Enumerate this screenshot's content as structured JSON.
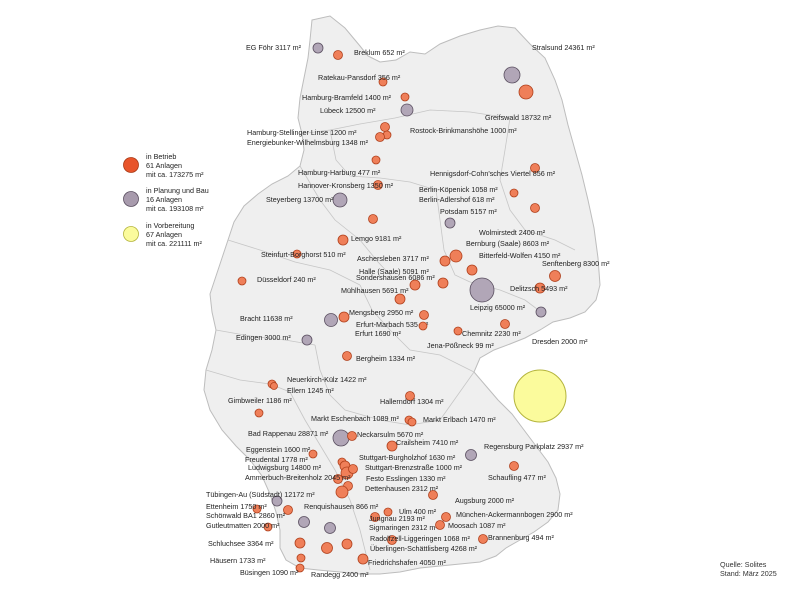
{
  "legend": [
    {
      "status": "in_betrieb",
      "line1": "in Betrieb",
      "line2": "61 Anlagen",
      "line3": "mit ca. 173275 m²",
      "color": "#e8542a"
    },
    {
      "status": "planung",
      "line1": "in Planung und Bau",
      "line2": "16 Anlagen",
      "line3": "mit ca. 193108 m²",
      "color": "#a89bad"
    },
    {
      "status": "vorbereitung",
      "line1": "in Vorbereitung",
      "line2": "67 Anlagen",
      "line3": "mit ca. 221111 m²",
      "color": "#fbfb9c"
    }
  ],
  "source": {
    "line1": "Quelle: Solites",
    "line2": "Stand: März 2025"
  },
  "colors": {
    "betrieb": "#ef7f59",
    "betrieb_stroke": "#b0401c",
    "planung": "#b1a6b7",
    "planung_stroke": "#5a4f60",
    "vorbereitung": "#fbfb9c",
    "vorbereitung_stroke": "#b4b43c",
    "land": "#efefef",
    "border": "#c6c6c6"
  },
  "sites": [
    {
      "name": "EG Föhr 3117 m²",
      "type": "planung"
    },
    {
      "name": "Breklum 652 m²",
      "type": "betrieb"
    },
    {
      "name": "Ratekau-Pansdorf 356 m²",
      "type": "betrieb"
    },
    {
      "name": "Stralsund 24361 m²",
      "type": "planung"
    },
    {
      "name": "Hamburg-Bramfeld 1400 m²",
      "type": "betrieb"
    },
    {
      "name": "Lübeck 12500 m²",
      "type": "planung"
    },
    {
      "name": "Greifswald 18732 m²",
      "type": "betrieb"
    },
    {
      "name": "Hamburg-Stellinger Linse 1200 m²",
      "type": "betrieb"
    },
    {
      "name": "Rostock-Brinkmanshöhe 1000 m²",
      "type": "betrieb"
    },
    {
      "name": "Energiebunker-Wilhelmsburg 1348 m²",
      "type": "betrieb"
    },
    {
      "name": "Hamburg-Harburg 477 m²",
      "type": "betrieb"
    },
    {
      "name": "Hennigsdorf-Cohn'sches Viertel 856 m²",
      "type": "betrieb"
    },
    {
      "name": "Hannover-Kronsberg 1350 m²",
      "type": "betrieb"
    },
    {
      "name": "Berlin-Köpenick 1058 m²",
      "type": "betrieb"
    },
    {
      "name": "Steyerberg 13700 m²",
      "type": "planung"
    },
    {
      "name": "Berlin-Adlershof 618 m²",
      "type": "betrieb"
    },
    {
      "name": "Potsdam 5157 m²",
      "type": "planung"
    },
    {
      "name": "Wolmirstedt 2400 m²",
      "type": "betrieb"
    },
    {
      "name": "Lemgo 9181 m²",
      "type": "betrieb"
    },
    {
      "name": "Bernburg (Saale) 8603 m²",
      "type": "betrieb"
    },
    {
      "name": "Steinfurt-Borghorst 510 m²",
      "type": "betrieb"
    },
    {
      "name": "Aschersleben 3717 m²",
      "type": "betrieb"
    },
    {
      "name": "Bitterfeld-Wolfen 4150 m²",
      "type": "betrieb"
    },
    {
      "name": "Halle (Saale) 5091 m²",
      "type": "betrieb"
    },
    {
      "name": "Senftenberg 8300 m²",
      "type": "betrieb"
    },
    {
      "name": "Sondershausen 6086 m²",
      "type": "betrieb"
    },
    {
      "name": "Düsseldorf 240 m²",
      "type": "betrieb"
    },
    {
      "name": "Mühlhausen 5691 m²",
      "type": "betrieb"
    },
    {
      "name": "Delitzsch 5493 m²",
      "type": "betrieb"
    },
    {
      "name": "Leipzig 65000 m²",
      "type": "planung"
    },
    {
      "name": "Mengsberg 2950 m²",
      "type": "betrieb"
    },
    {
      "name": "Bracht 11638 m²",
      "type": "planung"
    },
    {
      "name": "Erfurt-Marbach 535 m²",
      "type": "betrieb"
    },
    {
      "name": "Edingen 3000 m²",
      "type": "planung"
    },
    {
      "name": "Erfurt 1690 m²",
      "type": "betrieb"
    },
    {
      "name": "Chemnitz 2230 m²",
      "type": "betrieb"
    },
    {
      "name": "Dresden 2000 m²",
      "type": "planung"
    },
    {
      "name": "Jena-Pößneck 99 m²",
      "type": "betrieb"
    },
    {
      "name": "Bergheim 1334 m²",
      "type": "betrieb"
    },
    {
      "name": "Neuerkirch-Külz 1422 m²",
      "type": "betrieb"
    },
    {
      "name": "Ellern 1245 m²",
      "type": "betrieb"
    },
    {
      "name": "Gimbweiler 1186 m²",
      "type": "betrieb"
    },
    {
      "name": "Hallerndorf 1304 m²",
      "type": "betrieb"
    },
    {
      "name": "Markt Eschenbach 1089 m²",
      "type": "betrieb"
    },
    {
      "name": "Markt Erlbach 1470 m²",
      "type": "betrieb"
    },
    {
      "name": "Bad Rappenau 28871 m²",
      "type": "planung"
    },
    {
      "name": "Neckarsulm 5670 m²",
      "type": "betrieb"
    },
    {
      "name": "Crailsheim 7410 m²",
      "type": "betrieb"
    },
    {
      "name": "Eggenstein 1600 m²",
      "type": "betrieb"
    },
    {
      "name": "Regensburg Parkplatz 2937 m²",
      "type": "planung"
    },
    {
      "name": "Freudental 1778 m²",
      "type": "betrieb"
    },
    {
      "name": "Stuttgart-Burgholzhof 1630 m²",
      "type": "betrieb"
    },
    {
      "name": "Ludwigsburg 14800 m²",
      "type": "betrieb"
    },
    {
      "name": "Stuttgart-Brenzstraße 1000 m²",
      "type": "betrieb"
    },
    {
      "name": "Schaufling 477 m²",
      "type": "betrieb"
    },
    {
      "name": "Ammerbuch-Breitenholz 2045 m²",
      "type": "betrieb"
    },
    {
      "name": "Festo Esslingen 1330 m²",
      "type": "betrieb"
    },
    {
      "name": "Dettenhausen 2312 m²",
      "type": "betrieb"
    },
    {
      "name": "Tübingen-Au (Südstadt) 12172 m²",
      "type": "planung"
    },
    {
      "name": "Augsburg 2000 m²",
      "type": "betrieb"
    },
    {
      "name": "Ettenheim 1750 m²",
      "type": "betrieb"
    },
    {
      "name": "Renquishausen 866 m²",
      "type": "betrieb"
    },
    {
      "name": "Ulm 400 m²",
      "type": "betrieb"
    },
    {
      "name": "München-Ackermannbogen 2900 m²",
      "type": "betrieb"
    },
    {
      "name": "Schönwald BA1 2860 m²",
      "type": "planung"
    },
    {
      "name": "Jungnau 2193 m²",
      "type": "betrieb"
    },
    {
      "name": "Gutleutmatten 2000 m²",
      "type": "betrieb"
    },
    {
      "name": "Sigmaringen 2312 m²",
      "type": "planung"
    },
    {
      "name": "Moosach 1087 m²",
      "type": "betrieb"
    },
    {
      "name": "Radolfzell-Liggeringen 1068 m²",
      "type": "betrieb"
    },
    {
      "name": "Brannenburg 494 m²",
      "type": "betrieb"
    },
    {
      "name": "Schluchsee 3364 m²",
      "type": "betrieb"
    },
    {
      "name": "Überlingen-Schättlisberg 4268 m²",
      "type": "betrieb"
    },
    {
      "name": "Häusern 1733 m²",
      "type": "betrieb"
    },
    {
      "name": "Friedrichshafen 4050 m²",
      "type": "betrieb"
    },
    {
      "name": "Büsingen 1090 m²",
      "type": "betrieb"
    },
    {
      "name": "Randegg 2400 m²",
      "type": "betrieb"
    }
  ]
}
